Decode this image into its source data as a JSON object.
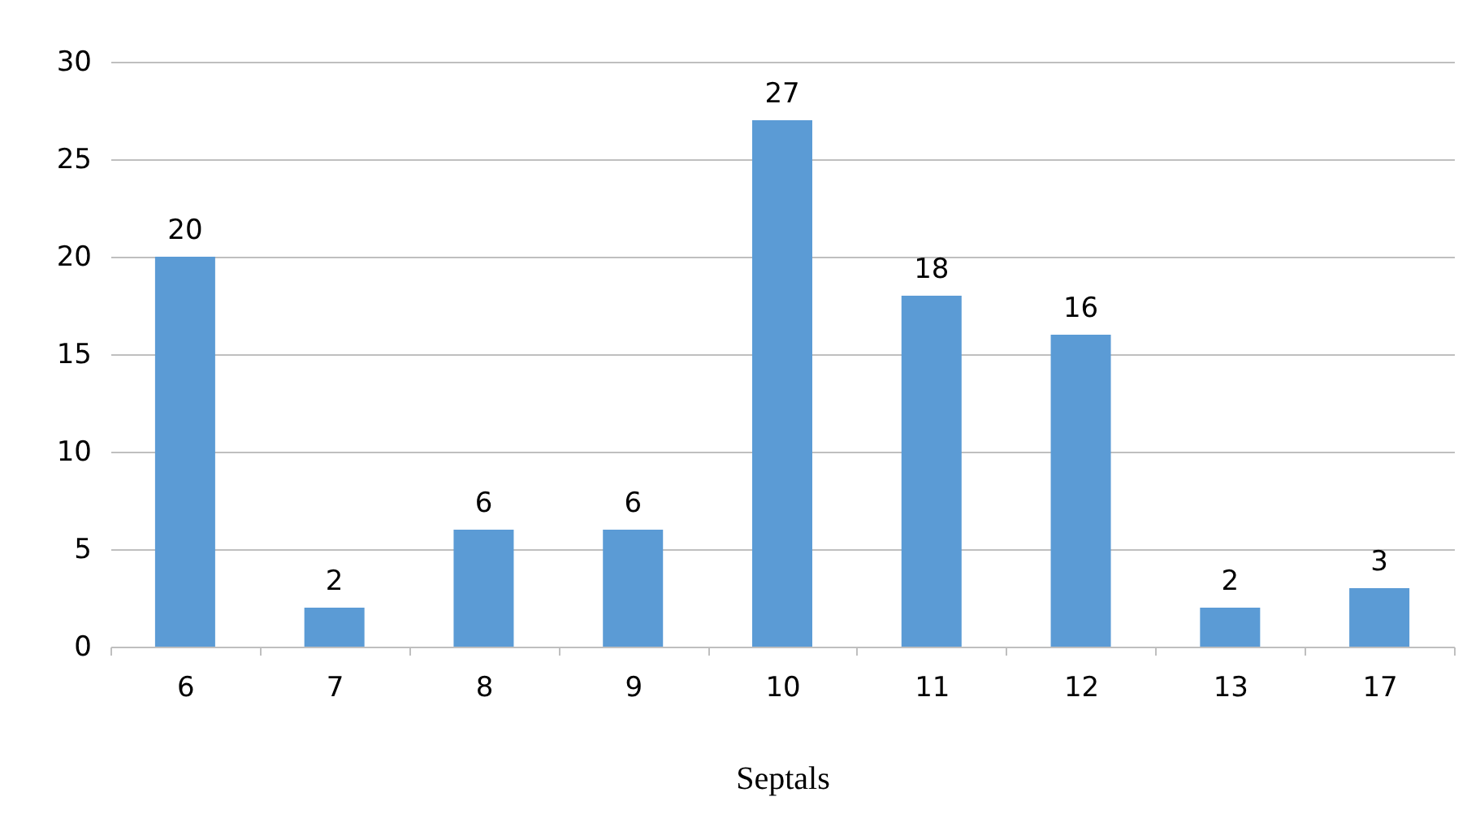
{
  "chart_data": {
    "type": "bar",
    "xlabel": "Septals",
    "categories": [
      "6",
      "7",
      "8",
      "9",
      "10",
      "11",
      "12",
      "13",
      "17"
    ],
    "values": [
      20,
      2,
      6,
      6,
      27,
      18,
      16,
      2,
      3
    ],
    "color": "#5b9bd5",
    "ylim": [
      0,
      30
    ],
    "yticks": [
      0,
      5,
      10,
      15,
      20,
      25,
      30
    ],
    "grid": "y",
    "data_labels": true
  }
}
